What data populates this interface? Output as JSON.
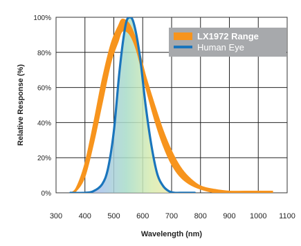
{
  "chart_data": {
    "type": "area",
    "xlabel": "Wavelength (nm)",
    "ylabel": "Relative Response (%)",
    "xlim": [
      300,
      1100
    ],
    "ylim": [
      0,
      100
    ],
    "x_ticks": [
      300,
      400,
      500,
      600,
      700,
      800,
      900,
      1000,
      1100
    ],
    "y_ticks": [
      {
        "value": 0,
        "label": "0%"
      },
      {
        "value": 20,
        "label": "20%"
      },
      {
        "value": 40,
        "label": "40%"
      },
      {
        "value": 60,
        "label": "60%"
      },
      {
        "value": 80,
        "label": "80%"
      },
      {
        "value": 100,
        "label": "100%"
      }
    ],
    "grid": true,
    "legend_position": "top-right",
    "series": [
      {
        "name": "LX1972 Range",
        "type": "band",
        "color": "#f7941d",
        "x": [
          350,
          370,
          400,
          430,
          460,
          490,
          515,
          530,
          555,
          580,
          610,
          640,
          670,
          700,
          730,
          760,
          800,
          850,
          900,
          950,
          1000,
          1050
        ],
        "upper": [
          0,
          3,
          17,
          40,
          65,
          85,
          95,
          99,
          96,
          86,
          67,
          51,
          36,
          24,
          15,
          9,
          4,
          2,
          1,
          1,
          1,
          1
        ],
        "lower": [
          0,
          1,
          9,
          28,
          51,
          74,
          86,
          92,
          90,
          80,
          60,
          42,
          27,
          16,
          9,
          5,
          2,
          0,
          0,
          0,
          0,
          0
        ]
      },
      {
        "name": "Human Eye",
        "type": "line",
        "color": "#1a75bc",
        "x": [
          350,
          400,
          430,
          460,
          480,
          500,
          520,
          540,
          555,
          570,
          590,
          610,
          630,
          650,
          670,
          690,
          710,
          730,
          780
        ],
        "values": [
          0,
          0,
          1,
          5,
          14,
          35,
          70,
          95,
          100,
          96,
          78,
          50,
          27,
          11,
          4,
          1,
          0,
          0,
          0
        ]
      }
    ]
  }
}
